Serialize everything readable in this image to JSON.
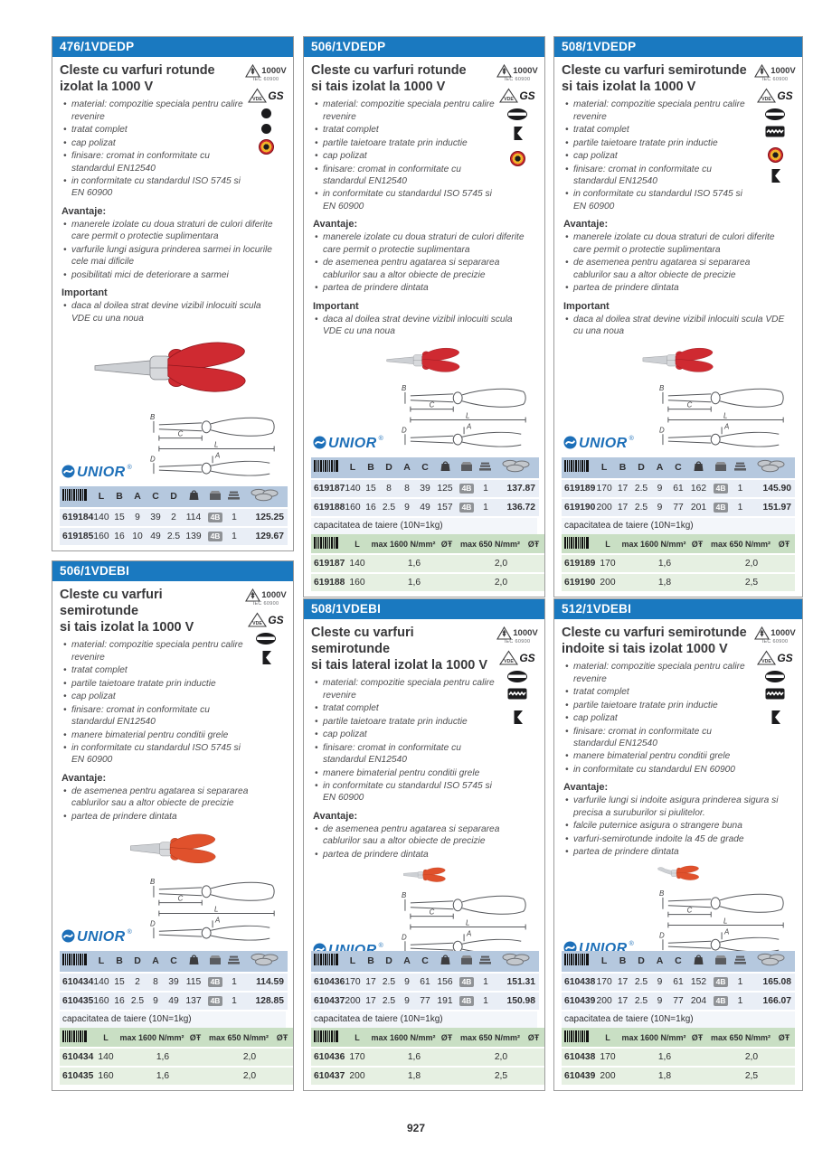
{
  "page": {
    "number": "927"
  },
  "shared": {
    "advantages_heading": "Avantaje:",
    "important_heading": "Important",
    "cutting_label": "capacitatea de taiere (10N=1kg)",
    "cutting_col_1600": "max 1600 N/mm²",
    "cutting_col_650": "max 650 N/mm²",
    "dia_symbol": "ØŦ",
    "badge": "4B",
    "brand": "UNIOR",
    "registered": "®",
    "icon_labels": {
      "voltage": "1000V",
      "iec": "IEC 60900",
      "vde": "VDE",
      "gs": "GS"
    },
    "drawing_labels": [
      "B",
      "C",
      "L",
      "D",
      "A"
    ]
  },
  "products": [
    {
      "code": "476/1VDEDP",
      "title": [
        "Cleste cu varfuri rotunde",
        "izolat la 1000 V"
      ],
      "features": [
        "material: compozitie speciala pentru calire revenire",
        "tratat complet",
        "cap polizat",
        "finisare: cromat in conformitate cu standardul EN12540",
        "in conformitate cu standardul ISO 5745 si EN 60900"
      ],
      "advantages": [
        "manerele izolate cu doua straturi de culori diferite care permit o protectie suplimentara",
        "varfurile lungi asigura prinderea sarmei in locurile cele mai dificile",
        "posibilitati mici de deteriorare a sarmei"
      ],
      "important": [
        "daca al doilea strat devine vizibil inlocuiti scula VDE cu una noua"
      ],
      "icons": [
        "cert-1000v",
        "cert-vde-gs",
        "dot",
        "dot",
        "target"
      ],
      "image": "round-nose-pliers-red-insulated",
      "columns": [
        "L",
        "B",
        "A",
        "C",
        "D"
      ],
      "rows": [
        {
          "sku": "619184",
          "dims": [
            "140",
            "15",
            "9",
            "39",
            "2"
          ],
          "weight": "114",
          "qty": "1",
          "price": "125.25"
        },
        {
          "sku": "619185",
          "dims": [
            "160",
            "16",
            "10",
            "49",
            "2.5"
          ],
          "weight": "139",
          "qty": "1",
          "price": "129.67"
        }
      ]
    },
    {
      "code": "506/1VDEDP",
      "title": [
        "Cleste cu varfuri rotunde",
        "si tais izolat la 1000 V"
      ],
      "features": [
        "material: compozitie speciala pentru calire revenire",
        "tratat complet",
        "partile taietoare tratate prin inductie",
        "cap polizat",
        "finisare: cromat in conformitate cu standardul EN12540",
        "in conformitate cu standardul ISO 5745 si EN 60900"
      ],
      "advantages": [
        "manerele izolate cu doua straturi de culori diferite care permit o protectie suplimentara",
        "de asemenea pentru agatarea si separarea cablurilor sau a altor obiecte de precizie",
        "partea de prindere dintata"
      ],
      "important": [
        "daca al doilea strat devine vizibil inlocuiti scula VDE cu una noua"
      ],
      "icons": [
        "cert-1000v",
        "cert-vde-gs",
        "flat-oval",
        "side-cutter",
        "target"
      ],
      "image": "round-nose-pliers-with-cutter-red-insulated",
      "columns": [
        "L",
        "B",
        "D",
        "A",
        "C"
      ],
      "rows": [
        {
          "sku": "619187",
          "dims": [
            "140",
            "15",
            "8",
            "8",
            "39"
          ],
          "weight": "125",
          "qty": "1",
          "price": "137.87"
        },
        {
          "sku": "619188",
          "dims": [
            "160",
            "16",
            "2.5",
            "9",
            "49"
          ],
          "weight": "157",
          "qty": "1",
          "price": "136.72"
        }
      ],
      "cutting": [
        {
          "sku": "619187",
          "l": "140",
          "v1600": "1,6",
          "v650": "2,0"
        },
        {
          "sku": "619188",
          "l": "160",
          "v1600": "1,6",
          "v650": "2,0"
        }
      ]
    },
    {
      "code": "508/1VDEDP",
      "title": [
        "Cleste cu varfuri semirotunde",
        "si tais izolat la 1000 V"
      ],
      "features": [
        "material: compozitie speciala pentru calire revenire",
        "tratat complet",
        "partile taietoare tratate prin inductie",
        "cap polizat",
        "finisare: cromat in conformitate cu standardul EN12540",
        "in conformitate cu standardul ISO 5745 si EN 60900"
      ],
      "advantages": [
        "manerele izolate cu doua straturi de culori diferite care permit o protectie suplimentara",
        "de asemenea pentru agatarea si separarea cablurilor sau a altor obiecte de precizie",
        "partea de prindere dintata"
      ],
      "important": [
        "daca al doilea strat devine vizibil inlocuiti scula VDE cu una noua"
      ],
      "icons": [
        "cert-1000v",
        "cert-vde-gs",
        "flat-oval",
        "serrated",
        "target",
        "side-cutter"
      ],
      "image": "halfround-nose-pliers-red-insulated",
      "columns": [
        "L",
        "B",
        "D",
        "A",
        "C"
      ],
      "rows": [
        {
          "sku": "619189",
          "dims": [
            "170",
            "17",
            "2.5",
            "9",
            "61"
          ],
          "weight": "162",
          "qty": "1",
          "price": "145.90"
        },
        {
          "sku": "619190",
          "dims": [
            "200",
            "17",
            "2.5",
            "9",
            "77"
          ],
          "weight": "201",
          "qty": "1",
          "price": "151.97"
        }
      ],
      "cutting": [
        {
          "sku": "619189",
          "l": "170",
          "v1600": "1,6",
          "v650": "2,0"
        },
        {
          "sku": "619190",
          "l": "200",
          "v1600": "1,8",
          "v650": "2,5"
        }
      ]
    },
    {
      "code": "506/1VDEBI",
      "title": [
        "Cleste cu varfuri semirotunde",
        "si tais izolat la 1000 V"
      ],
      "features": [
        "material: compozitie speciala pentru calire revenire",
        "tratat complet",
        "partile taietoare tratate prin inductie",
        "cap polizat",
        "finisare: cromat in conformitate cu standardul EN12540",
        "manere bimaterial pentru conditii grele",
        "in conformitate cu standardul ISO 5745 si EN 60900"
      ],
      "advantages": [
        "de asemenea pentru agatarea si separarea cablurilor sau a altor obiecte de precizie",
        "partea de prindere dintata"
      ],
      "icons": [
        "cert-1000v",
        "cert-vde-gs",
        "flat-oval",
        "side-cutter"
      ],
      "image": "halfround-nose-pliers-bimaterial",
      "columns": [
        "L",
        "B",
        "D",
        "A",
        "C"
      ],
      "rows": [
        {
          "sku": "610434",
          "dims": [
            "140",
            "15",
            "2",
            "8",
            "39"
          ],
          "weight": "115",
          "qty": "1",
          "price": "114.59"
        },
        {
          "sku": "610435",
          "dims": [
            "160",
            "16",
            "2.5",
            "9",
            "49"
          ],
          "weight": "137",
          "qty": "1",
          "price": "128.85"
        }
      ],
      "cutting": [
        {
          "sku": "610434",
          "l": "140",
          "v1600": "1,6",
          "v650": "2,0"
        },
        {
          "sku": "610435",
          "l": "160",
          "v1600": "1,6",
          "v650": "2,0"
        }
      ]
    },
    {
      "code": "508/1VDEBI",
      "title": [
        "Cleste cu varfuri semirotunde",
        "si tais lateral izolat la 1000 V"
      ],
      "features": [
        "material: compozitie speciala pentru calire revenire",
        "tratat complet",
        "partile taietoare tratate prin inductie",
        "cap polizat",
        "finisare: cromat in conformitate cu standardul EN12540",
        "manere bimaterial pentru conditii grele",
        "in conformitate cu standardul ISO 5745 si EN 60900"
      ],
      "advantages": [
        "de asemenea pentru agatarea si separarea cablurilor sau a altor obiecte de precizie",
        "partea de prindere dintata"
      ],
      "icons": [
        "cert-1000v",
        "cert-vde-gs",
        "flat-oval",
        "serrated",
        "side-cutter"
      ],
      "image": "halfround-nose-pliers-bimaterial",
      "columns": [
        "L",
        "B",
        "D",
        "A",
        "C"
      ],
      "rows": [
        {
          "sku": "610436",
          "dims": [
            "170",
            "17",
            "2.5",
            "9",
            "61"
          ],
          "weight": "156",
          "qty": "1",
          "price": "151.31"
        },
        {
          "sku": "610437",
          "dims": [
            "200",
            "17",
            "2.5",
            "9",
            "77"
          ],
          "weight": "191",
          "qty": "1",
          "price": "150.98"
        }
      ],
      "cutting": [
        {
          "sku": "610436",
          "l": "170",
          "v1600": "1,6",
          "v650": "2,0"
        },
        {
          "sku": "610437",
          "l": "200",
          "v1600": "1,8",
          "v650": "2,5"
        }
      ]
    },
    {
      "code": "512/1VDEBI",
      "title": [
        "Cleste cu varfuri semirotunde",
        "indoite si tais izolat 1000 V"
      ],
      "features": [
        "material: compozitie speciala pentru calire revenire",
        "tratat complet",
        "partile taietoare tratate prin inductie",
        "cap polizat",
        "finisare: cromat in conformitate cu standardul EN12540",
        "manere bimaterial pentru conditii grele",
        "in conformitate cu standardul EN 60900"
      ],
      "advantages": [
        "varfurile lungi si indoite asigura prinderea sigura si precisa a suruburilor si piulitelor.",
        "falcile puternice asigura o strangere buna",
        "varfuri-semirotunde indoite la 45 de grade",
        "partea de prindere dintata"
      ],
      "icons": [
        "cert-1000v",
        "cert-vde-gs",
        "flat-oval",
        "serrated",
        "side-cutter"
      ],
      "image": "bent-nose-pliers-bimaterial",
      "columns": [
        "L",
        "B",
        "D",
        "A",
        "C"
      ],
      "rows": [
        {
          "sku": "610438",
          "dims": [
            "170",
            "17",
            "2.5",
            "9",
            "61"
          ],
          "weight": "152",
          "qty": "1",
          "price": "165.08"
        },
        {
          "sku": "610439",
          "dims": [
            "200",
            "17",
            "2.5",
            "9",
            "77"
          ],
          "weight": "204",
          "qty": "1",
          "price": "166.07"
        }
      ],
      "cutting": [
        {
          "sku": "610438",
          "l": "170",
          "v1600": "1,6",
          "v650": "2,0"
        },
        {
          "sku": "610439",
          "l": "200",
          "v1600": "1,8",
          "v650": "2,5"
        }
      ]
    }
  ]
}
